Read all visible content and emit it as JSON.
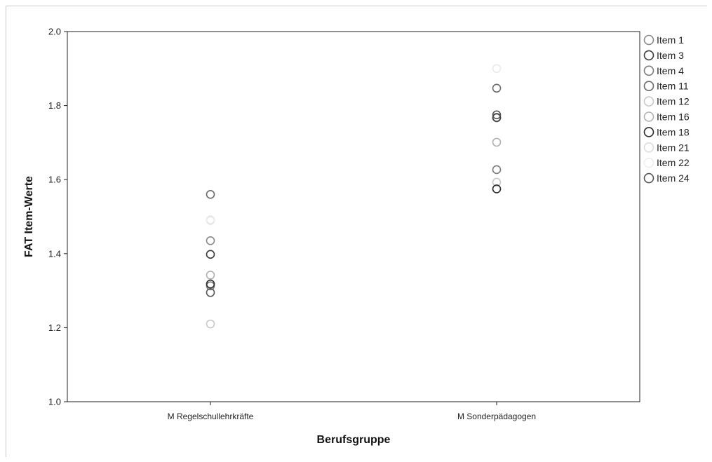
{
  "chart_data": {
    "type": "scatter",
    "title": "",
    "xlabel": "Berufsgruppe",
    "ylabel": "FAT Item-Werte",
    "categories": [
      "M Regelschullehrkräfte",
      "M Sonderpädagogen"
    ],
    "ylim": [
      1.0,
      2.0
    ],
    "yticks": [
      "1.0",
      "1.2",
      "1.4",
      "1.6",
      "1.8",
      "2.0"
    ],
    "grid": false,
    "legend_position": "right",
    "series": [
      {
        "name": "Item 1",
        "color": "#8a8a8a",
        "values": [
          1.435,
          1.767
        ]
      },
      {
        "name": "Item 3",
        "color": "#3a3a3a",
        "values": [
          1.398,
          1.768
        ]
      },
      {
        "name": "Item 4",
        "color": "#7a7a7a",
        "values": [
          1.313,
          1.627
        ]
      },
      {
        "name": "Item 11",
        "color": "#6a6a6a",
        "values": [
          1.56,
          1.847
        ]
      },
      {
        "name": "Item 12",
        "color": "#c8c8c8",
        "values": [
          1.21,
          1.593
        ]
      },
      {
        "name": "Item 16",
        "color": "#b0b0b0",
        "values": [
          1.342,
          1.701
        ]
      },
      {
        "name": "Item 18",
        "color": "#2a2a2a",
        "values": [
          1.318,
          1.575
        ]
      },
      {
        "name": "Item 21",
        "color": "#dcdcdc",
        "values": [
          1.49,
          1.9
        ]
      },
      {
        "name": "Item 22",
        "color": "#ededed",
        "values": [
          1.492,
          1.9
        ]
      },
      {
        "name": "Item 24",
        "color": "#555555",
        "values": [
          1.295,
          1.775
        ]
      }
    ]
  }
}
